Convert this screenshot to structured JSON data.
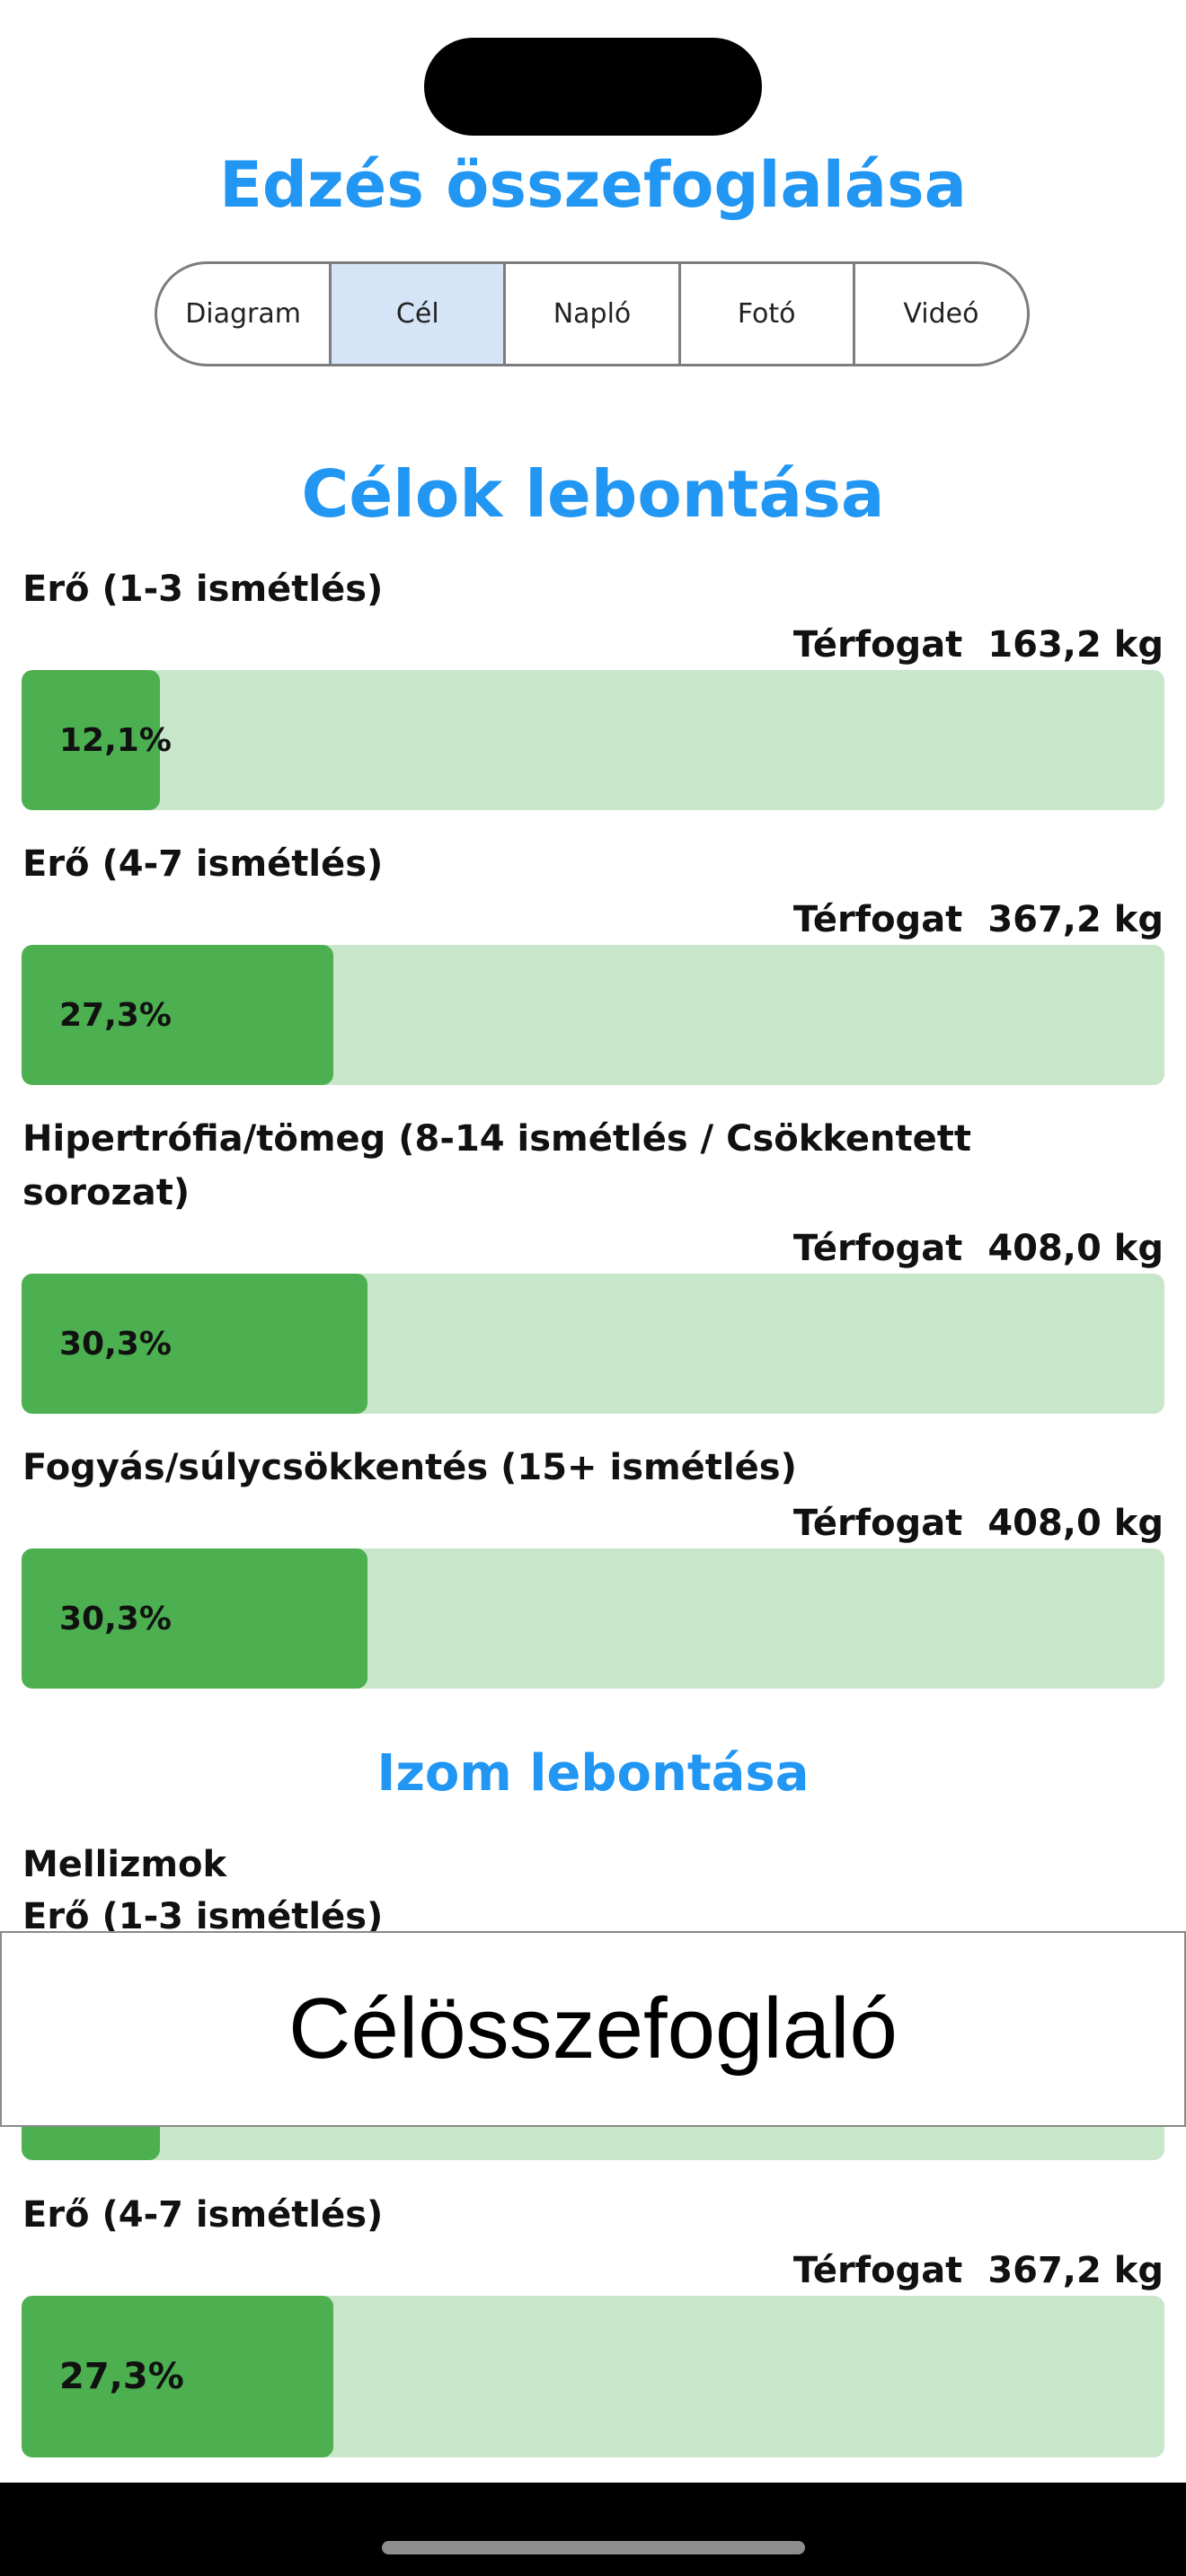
{
  "app": {
    "title": "Edzés összefoglalása"
  },
  "tabs": [
    {
      "label": "Diagram",
      "selected": false
    },
    {
      "label": "Cél",
      "selected": true
    },
    {
      "label": "Napló",
      "selected": false
    },
    {
      "label": "Fotó",
      "selected": false
    },
    {
      "label": "Videó",
      "selected": false
    }
  ],
  "goals_section": {
    "title": "Célok lebontása",
    "items": [
      {
        "label": "Erő (1-3 ismétlés)",
        "volume_label": "Térfogat",
        "volume_value": "163,2 kg",
        "percent_text": "12,1%",
        "percent": 12.1
      },
      {
        "label": "Erő (4-7 ismétlés)",
        "volume_label": "Térfogat",
        "volume_value": "367,2 kg",
        "percent_text": "27,3%",
        "percent": 27.3
      },
      {
        "label": "Hipertrófia/tömeg (8-14 ismétlés / Csökkentett sorozat)",
        "volume_label": "Térfogat",
        "volume_value": "408,0 kg",
        "percent_text": "30,3%",
        "percent": 30.3
      },
      {
        "label": "Fogyás/súlycsökkentés (15+ ismétlés)",
        "volume_label": "Térfogat",
        "volume_value": "408,0 kg",
        "percent_text": "30,3%",
        "percent": 30.3
      }
    ]
  },
  "muscle_section": {
    "title": "Izom lebontása",
    "group_name": "Mellizmok",
    "items": [
      {
        "label": "Erő (1-3 ismétlés)",
        "percent": 12.1
      },
      {
        "label": "Erő (4-7 ismétlés)",
        "volume_label": "Térfogat",
        "volume_value": "367,2 kg",
        "percent_text": "27,3%",
        "percent": 27.3
      }
    ]
  },
  "banner": {
    "text": "Célösszefoglaló"
  },
  "colors": {
    "accent": "#2196f3",
    "bar_fill": "#4caf50",
    "bar_track": "#c8e6c9",
    "selected_tab": "#d5e5f7"
  }
}
